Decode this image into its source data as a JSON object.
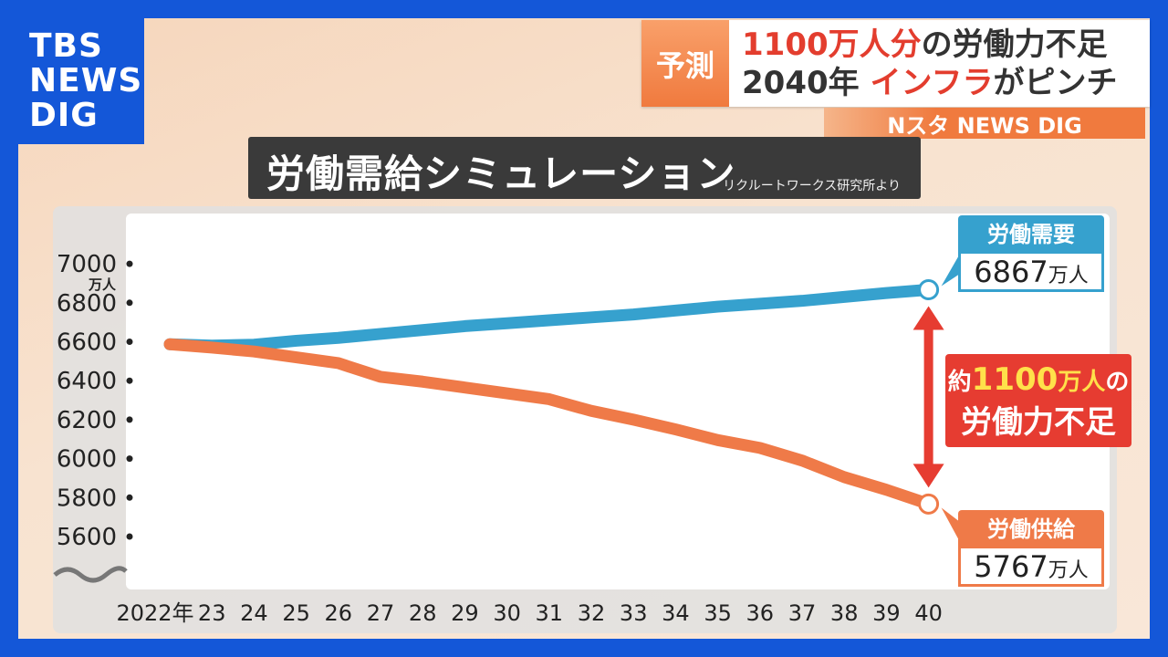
{
  "brand": {
    "logo_lines": [
      "TBS",
      "NEWS",
      "DIG"
    ]
  },
  "headline": {
    "tag": "予測",
    "line1_red": "1100万人分",
    "line1_rest": "の労働力不足",
    "line2_a": "2040年 ",
    "line2_red": "インフラ",
    "line2_b": "がピンチ",
    "program": "Nスタ NEWS DIG"
  },
  "chart_title": {
    "main": "労働需給シミュレーション",
    "source": "リクルートワークス研究所より"
  },
  "callouts": {
    "demand": {
      "label": "労働需要",
      "value": "6867",
      "unit": "万人"
    },
    "supply": {
      "label": "労働供給",
      "value": "5767",
      "unit": "万人"
    },
    "shortage": {
      "prefix": "約",
      "value": "1100",
      "unit": "万人",
      "suffix": "の",
      "line2": "労働力不足"
    }
  },
  "colors": {
    "demand": "#36a1ce",
    "supply": "#ef7a48",
    "shortage": "#e63c31",
    "brand": "#1457d8"
  },
  "chart_data": {
    "type": "line",
    "title": "労働需給シミュレーション",
    "y_unit": "万人",
    "x_tick_labels": [
      "2022年",
      "23",
      "24",
      "25",
      "26",
      "27",
      "28",
      "29",
      "30",
      "31",
      "32",
      "33",
      "34",
      "35",
      "36",
      "37",
      "38",
      "39",
      "40"
    ],
    "y_ticks": [
      5600,
      5800,
      6000,
      6200,
      6400,
      6600,
      6800,
      7000
    ],
    "ylim": [
      5500,
      7000
    ],
    "x": [
      2022,
      2023,
      2024,
      2025,
      2026,
      2027,
      2028,
      2029,
      2030,
      2031,
      2032,
      2033,
      2034,
      2035,
      2036,
      2037,
      2038,
      2039,
      2040
    ],
    "series": [
      {
        "name": "労働需要",
        "values": [
          6587,
          6580,
          6585,
          6605,
          6620,
          6640,
          6660,
          6680,
          6695,
          6710,
          6725,
          6740,
          6760,
          6780,
          6795,
          6810,
          6830,
          6850,
          6867
        ]
      },
      {
        "name": "労働供給",
        "values": [
          6587,
          6570,
          6550,
          6520,
          6490,
          6420,
          6395,
          6365,
          6335,
          6305,
          6245,
          6200,
          6150,
          6095,
          6055,
          5990,
          5905,
          5840,
          5767
        ]
      }
    ],
    "grid": false,
    "legend": "none"
  }
}
